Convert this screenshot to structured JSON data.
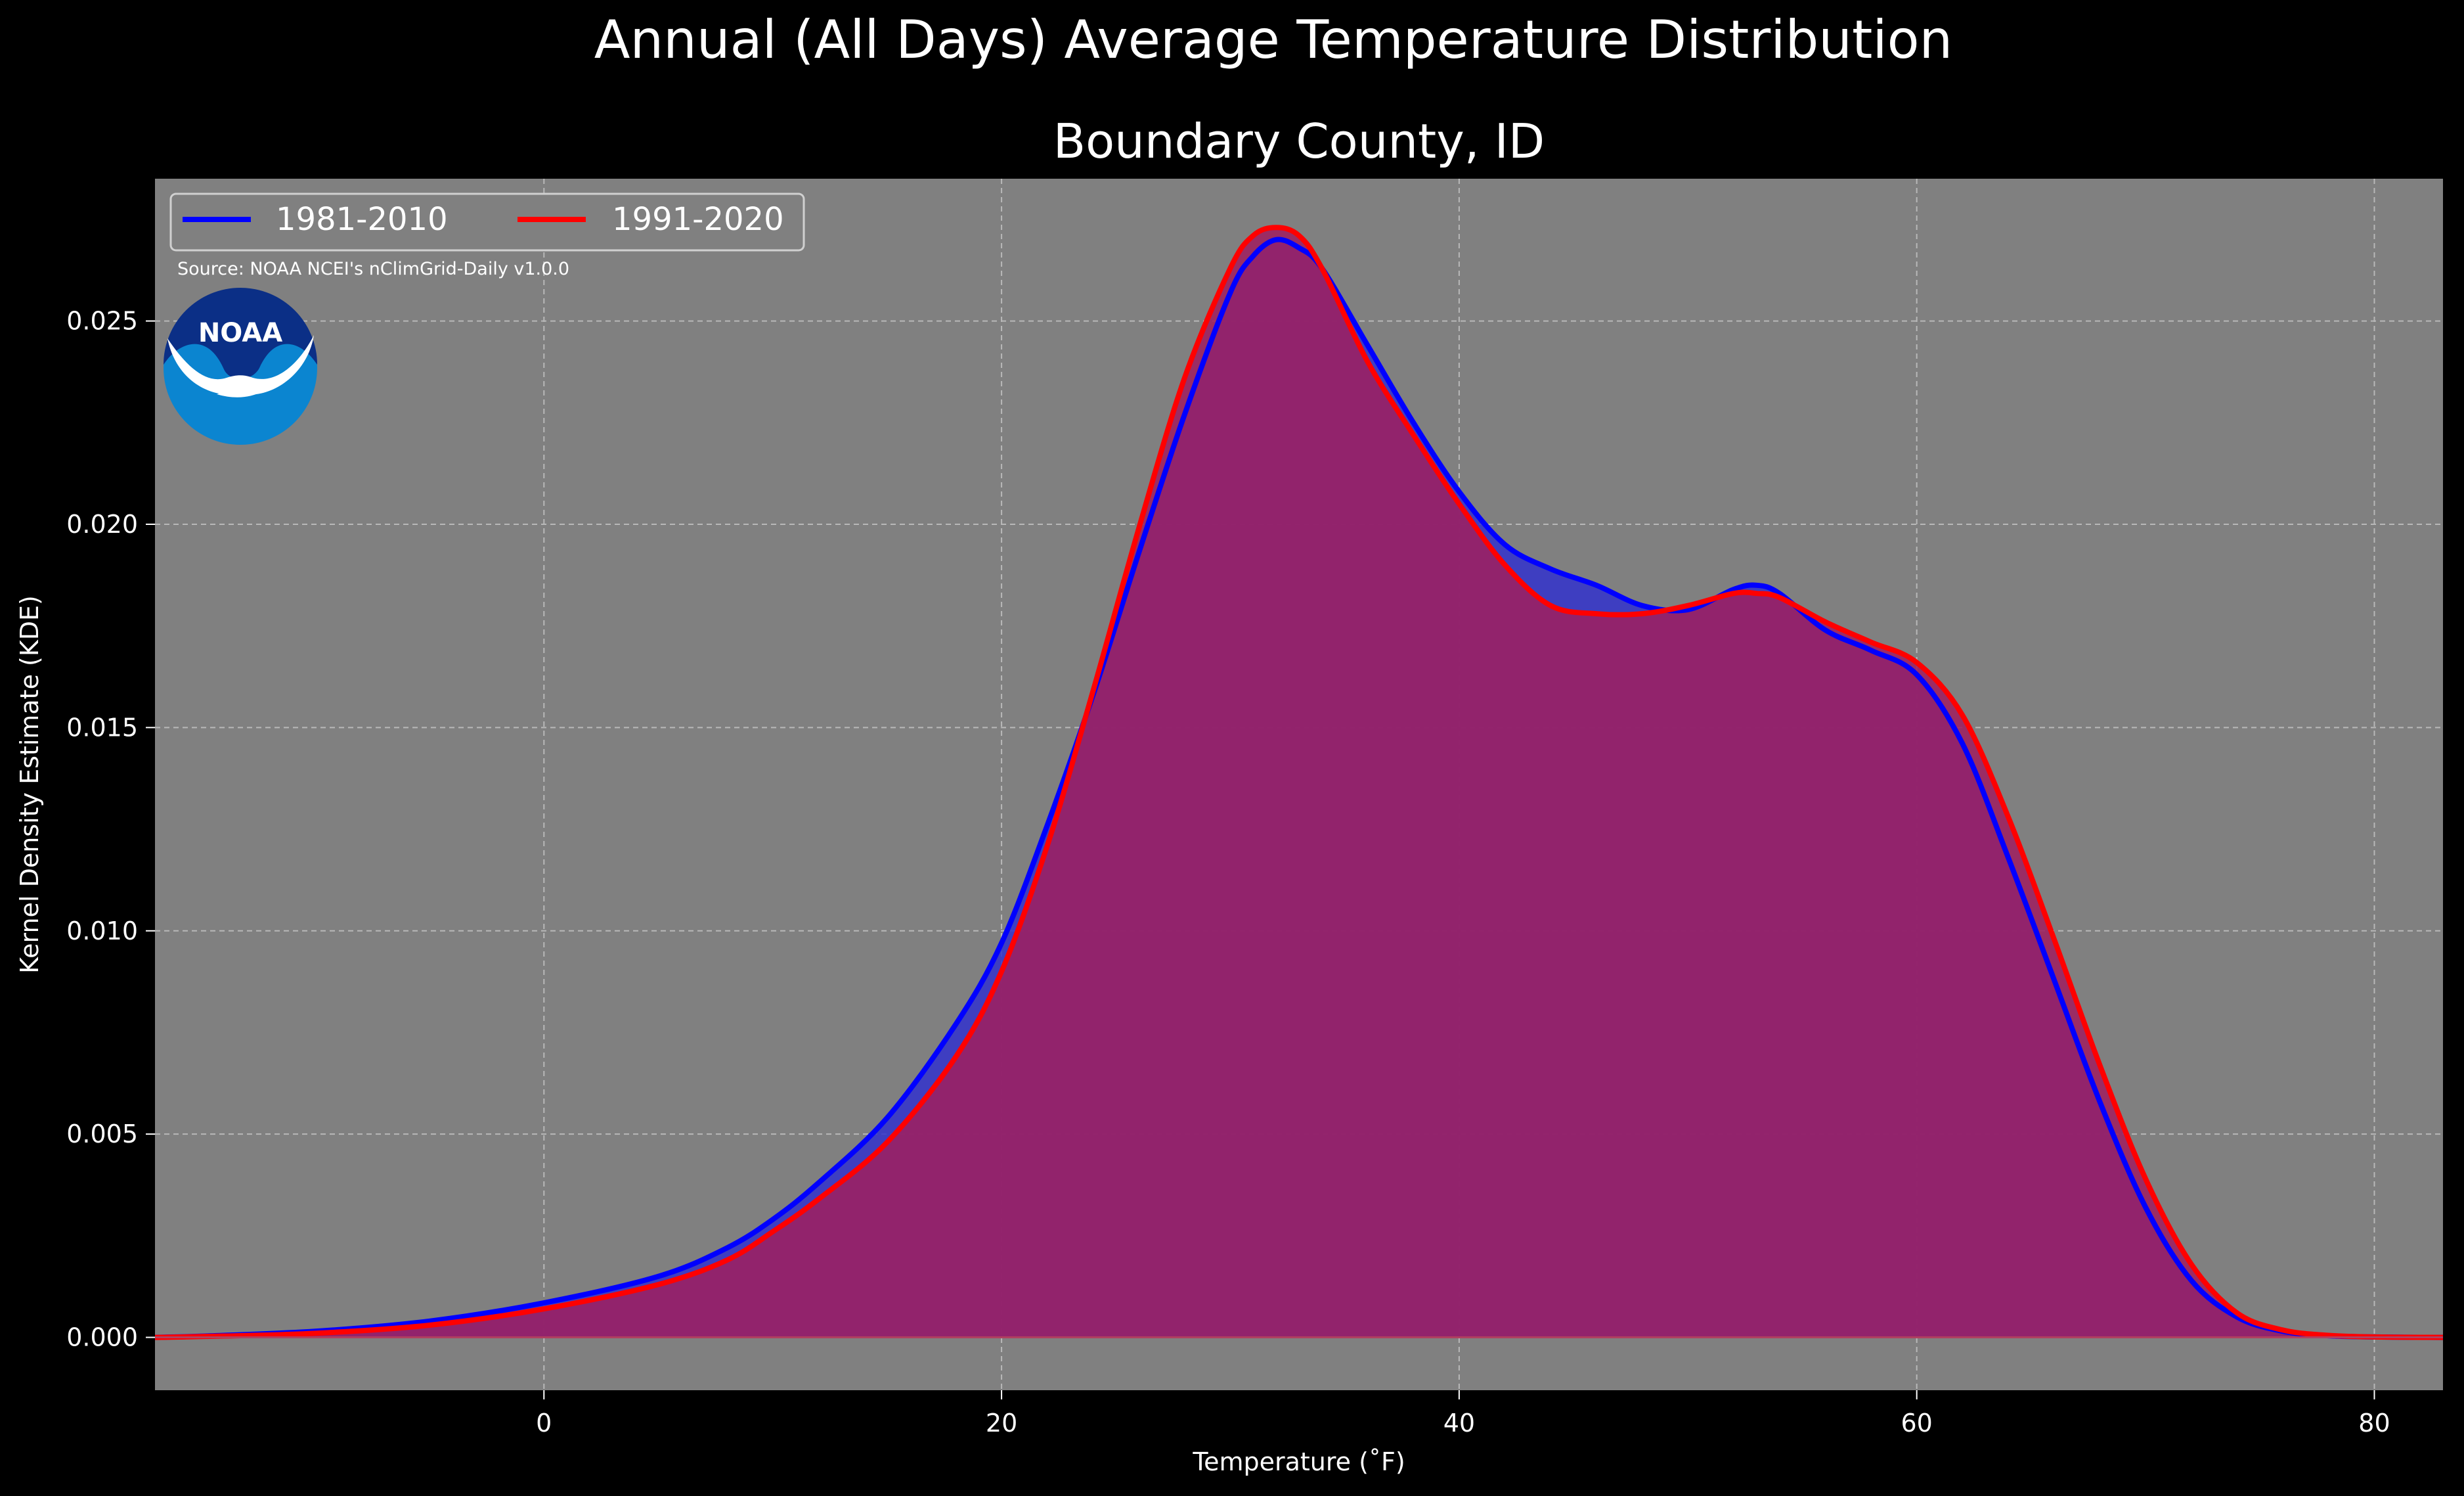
{
  "chart_data": {
    "type": "area",
    "suptitle": "Annual (All Days) Average Temperature Distribution",
    "title": "Boundary County, ID",
    "xlabel": "Temperature ($^\\circ$F)",
    "xlabel_display": "Temperature (˚F)",
    "ylabel": "Kernel Density Estimate (KDE)",
    "xlim": [
      -17,
      83
    ],
    "ylim": [
      -0.0013,
      0.0285
    ],
    "xticks": [
      0,
      20,
      40,
      60,
      80
    ],
    "xtick_labels": [
      "0",
      "20",
      "40",
      "60",
      "80"
    ],
    "yticks": [
      0.0,
      0.005,
      0.01,
      0.015,
      0.02,
      0.025
    ],
    "ytick_labels": [
      "0.000",
      "0.005",
      "0.010",
      "0.015",
      "0.020",
      "0.025"
    ],
    "grid": true,
    "legend_position": "top-left",
    "source_note": "Source: NOAA NCEI's nClimGrid-Daily v1.0.0",
    "logo_text": "NOAA",
    "background_color": "#000000",
    "plot_background_color": "#808080",
    "series": [
      {
        "name": "1981-2010",
        "color": "#0000ff",
        "fill_color": "#3333cc",
        "x": [
          -17,
          -15,
          -10,
          -5,
          0,
          5,
          8,
          10,
          12,
          15,
          18,
          20,
          22,
          24,
          26,
          28,
          30,
          31,
          32,
          33,
          34,
          36,
          38,
          40,
          42,
          44,
          46,
          48,
          50,
          52,
          53,
          54,
          56,
          58,
          60,
          62,
          64,
          66,
          68,
          70,
          72,
          74,
          76,
          78,
          80,
          83
        ],
        "y": [
          0.0,
          3e-05,
          0.00015,
          0.0004,
          0.00085,
          0.0015,
          0.0022,
          0.0029,
          0.0038,
          0.0054,
          0.0077,
          0.0097,
          0.0126,
          0.0158,
          0.0193,
          0.0227,
          0.0257,
          0.0266,
          0.027,
          0.0268,
          0.0263,
          0.0244,
          0.0225,
          0.0208,
          0.0195,
          0.0189,
          0.0185,
          0.018,
          0.0179,
          0.0184,
          0.0185,
          0.0183,
          0.0174,
          0.0169,
          0.0163,
          0.0146,
          0.0118,
          0.0088,
          0.0058,
          0.0032,
          0.0014,
          0.0005,
          0.00015,
          4e-05,
          1e-05,
          0.0
        ]
      },
      {
        "name": "1991-2020",
        "color": "#ff0000",
        "fill_color": "#9e2060",
        "x": [
          -17,
          -15,
          -10,
          -5,
          0,
          5,
          8,
          10,
          12,
          15,
          18,
          20,
          22,
          24,
          26,
          28,
          30,
          31,
          32,
          33,
          34,
          36,
          38,
          40,
          42,
          44,
          46,
          48,
          50,
          52,
          53,
          54,
          56,
          58,
          60,
          62,
          64,
          66,
          68,
          70,
          72,
          74,
          76,
          78,
          80,
          83
        ],
        "y": [
          0.0,
          2e-05,
          0.0001,
          0.0003,
          0.0007,
          0.0013,
          0.0019,
          0.0026,
          0.0034,
          0.0048,
          0.0069,
          0.009,
          0.0121,
          0.0159,
          0.0199,
          0.0236,
          0.0263,
          0.0271,
          0.0273,
          0.0271,
          0.0263,
          0.024,
          0.0222,
          0.0205,
          0.019,
          0.018,
          0.0178,
          0.0178,
          0.018,
          0.0183,
          0.0183,
          0.0182,
          0.0176,
          0.0171,
          0.0166,
          0.0153,
          0.0128,
          0.0098,
          0.0067,
          0.0039,
          0.0018,
          0.0006,
          0.00018,
          5e-05,
          1e-05,
          0.0
        ]
      }
    ]
  }
}
